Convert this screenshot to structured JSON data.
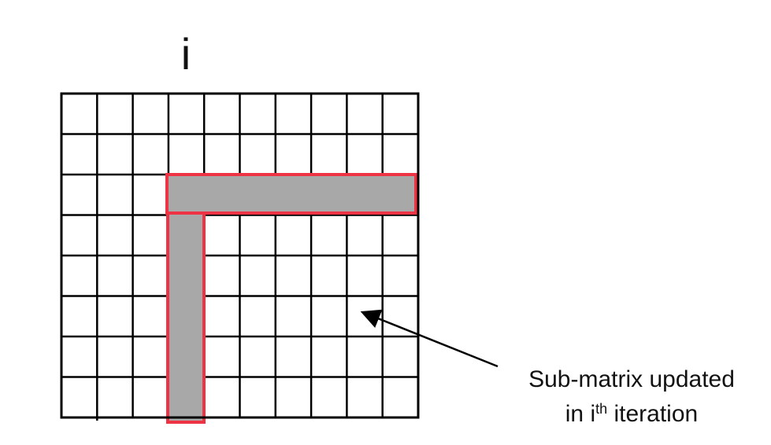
{
  "column_label": "i",
  "callout": {
    "line1": "Sub-matrix updated",
    "line2_prefix": "in i",
    "line2_superscript": "th",
    "line2_suffix": " iteration"
  },
  "grid": {
    "rows": 8,
    "columns": 10
  },
  "colors": {
    "grid_line": "#000000",
    "highlight_fill": "#a8a8a8",
    "highlight_border": "#ee3344",
    "arrow": "#000000"
  }
}
